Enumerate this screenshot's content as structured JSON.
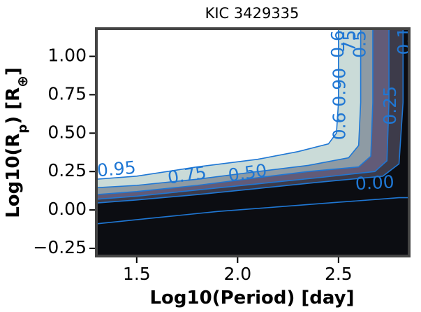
{
  "chart_data": {
    "type": "contour",
    "title": "KIC 3429335",
    "xlabel": "Log10(Period) [day]",
    "ylabel_parts": {
      "base": "Log10(R",
      "sub": "p",
      "mid": ") [R",
      "sup": "⊕",
      "end": "]"
    },
    "xlim": [
      1.3,
      2.85
    ],
    "ylim": [
      -0.3,
      1.18
    ],
    "xticks": [
      1.5,
      2.0,
      2.5
    ],
    "xtick_labels": [
      "1.5",
      "2.0",
      "2.5"
    ],
    "yticks": [
      -0.25,
      0.0,
      0.25,
      0.5,
      0.75,
      1.0
    ],
    "ytick_labels": [
      "−0.25",
      "0.00",
      "0.25",
      "0.50",
      "0.75",
      "1.00"
    ],
    "levels": [
      0.0,
      0.1,
      0.25,
      0.5,
      0.75,
      0.95
    ],
    "level_fill_colors": [
      "#0c0d12",
      "#3d3b4a",
      "#625b78",
      "#8e9ba4",
      "#cadbd8"
    ],
    "above_max_color": "#ffffff",
    "line_color": "#1f77d4",
    "frame_color": "#444444",
    "contours": [
      {
        "level": 0.95,
        "points": [
          [
            1.3,
            0.2
          ],
          [
            1.5,
            0.22
          ],
          [
            1.8,
            0.28
          ],
          [
            2.1,
            0.33
          ],
          [
            2.3,
            0.38
          ],
          [
            2.45,
            0.43
          ],
          [
            2.49,
            0.5
          ],
          [
            2.5,
            0.7
          ],
          [
            2.5,
            1.18
          ]
        ]
      },
      {
        "level": 0.75,
        "points": [
          [
            1.3,
            0.145
          ],
          [
            1.5,
            0.16
          ],
          [
            1.8,
            0.2
          ],
          [
            2.1,
            0.25
          ],
          [
            2.35,
            0.29
          ],
          [
            2.55,
            0.34
          ],
          [
            2.6,
            0.42
          ],
          [
            2.61,
            0.7
          ],
          [
            2.61,
            1.18
          ]
        ]
      },
      {
        "level": 0.5,
        "points": [
          [
            1.3,
            0.1
          ],
          [
            1.5,
            0.12
          ],
          [
            1.8,
            0.16
          ],
          [
            2.1,
            0.21
          ],
          [
            2.35,
            0.25
          ],
          [
            2.6,
            0.28
          ],
          [
            2.66,
            0.35
          ],
          [
            2.67,
            0.7
          ],
          [
            2.67,
            1.18
          ]
        ]
      },
      {
        "level": 0.25,
        "points": [
          [
            1.3,
            0.07
          ],
          [
            1.5,
            0.09
          ],
          [
            1.8,
            0.13
          ],
          [
            2.1,
            0.17
          ],
          [
            2.4,
            0.21
          ],
          [
            2.68,
            0.25
          ],
          [
            2.74,
            0.32
          ],
          [
            2.75,
            0.7
          ],
          [
            2.75,
            1.18
          ]
        ]
      },
      {
        "level": 0.1,
        "points": [
          [
            1.3,
            0.045
          ],
          [
            1.5,
            0.065
          ],
          [
            1.8,
            0.1
          ],
          [
            2.1,
            0.14
          ],
          [
            2.4,
            0.18
          ],
          [
            2.72,
            0.22
          ],
          [
            2.8,
            0.3
          ],
          [
            2.82,
            0.7
          ],
          [
            2.82,
            1.18
          ]
        ]
      },
      {
        "level": 0.0,
        "points": [
          [
            1.3,
            -0.09
          ],
          [
            1.6,
            -0.05
          ],
          [
            1.9,
            -0.01
          ],
          [
            2.2,
            0.02
          ],
          [
            2.5,
            0.05
          ],
          [
            2.7,
            0.07
          ],
          [
            2.8,
            0.08
          ],
          [
            2.85,
            0.08
          ]
        ]
      }
    ],
    "contour_labels": [
      {
        "text": "0.95",
        "x": 1.4,
        "y": 0.26,
        "angle": -5
      },
      {
        "text": "0.75",
        "x": 1.75,
        "y": 0.22,
        "angle": -8
      },
      {
        "text": "0.50",
        "x": 2.05,
        "y": 0.235,
        "angle": -8
      },
      {
        "text": "0.00",
        "x": 2.68,
        "y": 0.17,
        "angle": -3
      },
      {
        "text": "0.25",
        "x": 2.76,
        "y": 0.68,
        "angle": -90
      },
      {
        "text": "0.1",
        "x": 2.83,
        "y": 1.1,
        "angle": -90
      },
      {
        "text": "0.6 0.90",
        "x": 2.51,
        "y": 0.69,
        "angle": -90
      },
      {
        "text": "0.5",
        "x": 2.61,
        "y": 1.08,
        "angle": -90
      },
      {
        "text": "75",
        "x": 2.56,
        "y": 1.1,
        "angle": -90
      },
      {
        "text": "0.6",
        "x": 2.5,
        "y": 1.08,
        "angle": -90
      }
    ]
  }
}
